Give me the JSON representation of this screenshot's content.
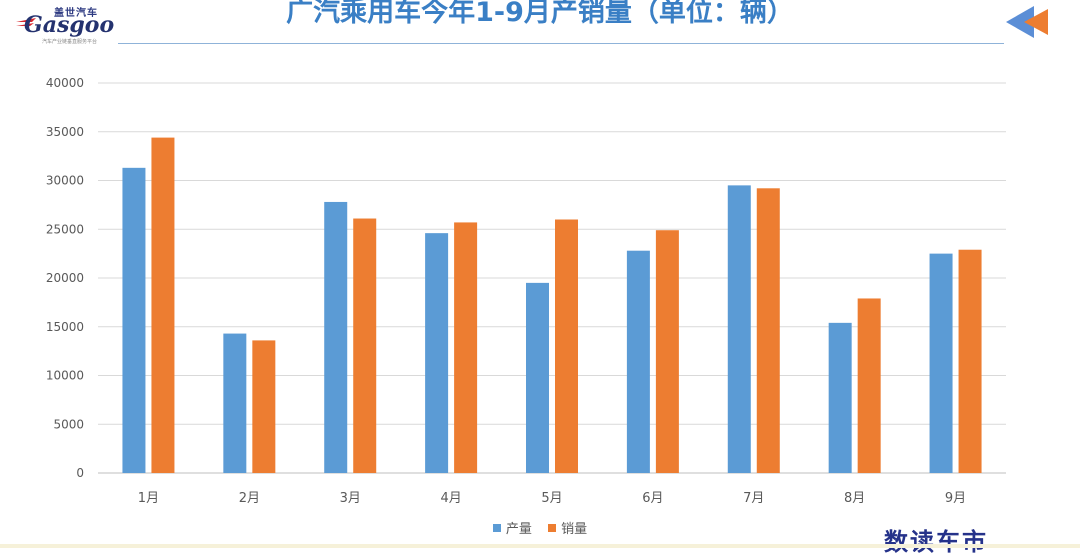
{
  "logo": {
    "name_cn": "盖世汽车",
    "name_en": "Gasgoo",
    "tagline": "汽车产业链垂直服务平台"
  },
  "chart_data": {
    "type": "bar",
    "title": "广汽乘用车今年1-9月产销量（单位：辆）",
    "categories": [
      "1月",
      "2月",
      "3月",
      "4月",
      "5月",
      "6月",
      "7月",
      "8月",
      "9月"
    ],
    "series": [
      {
        "name": "产量",
        "color": "#5b9bd5",
        "values": [
          31300,
          14300,
          27800,
          24600,
          19500,
          22800,
          29500,
          15400,
          22500
        ]
      },
      {
        "name": "销量",
        "color": "#ed7d31",
        "values": [
          34400,
          13600,
          26100,
          25700,
          26000,
          24900,
          29200,
          17900,
          22900
        ]
      }
    ],
    "ylim": [
      0,
      40000
    ],
    "yticks": [
      "0",
      "5000",
      "10000",
      "15000",
      "20000",
      "25000",
      "30000",
      "35000",
      "40000"
    ],
    "grid": true,
    "legend": "bottom"
  },
  "footer": {
    "brand": "数读车市"
  },
  "colors": {
    "title": "#3a7fc5",
    "accent_arrow_blue": "#5b8ed6",
    "accent_arrow_orange": "#ed7d31"
  }
}
